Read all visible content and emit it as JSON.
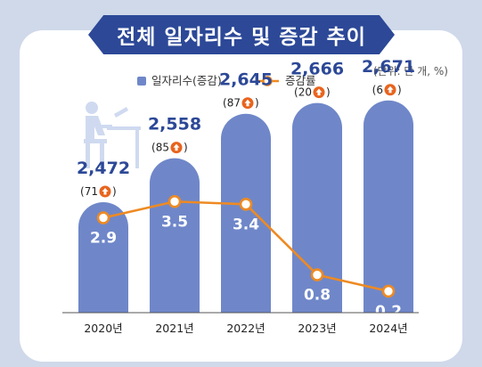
{
  "title": "전체 일자리수 및 증감 추이",
  "unit_note": "(단위: 만 개, %)",
  "colors": {
    "bar": "#6f87c9",
    "line": "#ee8a22",
    "value_text": "#2c4897",
    "title_bg": "#2c4897"
  },
  "icons": [
    "person-at-desk-icon",
    "up-arrow-circle-icon"
  ],
  "chart_data": {
    "type": "bar",
    "categories": [
      "2020년",
      "2021년",
      "2022년",
      "2023년",
      "2024년"
    ],
    "series": [
      {
        "name": "일자리수(증감)",
        "type": "bar",
        "values": [
          2472,
          2558,
          2645,
          2666,
          2671
        ],
        "value_labels": [
          "2,472",
          "2,558",
          "2,645",
          "2,666",
          "2,671"
        ],
        "changes": [
          71,
          85,
          87,
          20,
          6
        ]
      },
      {
        "name": "증감률",
        "type": "line",
        "values": [
          2.9,
          3.5,
          3.4,
          0.8,
          0.2
        ],
        "value_labels": [
          "2.9",
          "3.5",
          "3.4",
          "0.8",
          "0.2"
        ]
      }
    ],
    "legend_position": "top"
  }
}
